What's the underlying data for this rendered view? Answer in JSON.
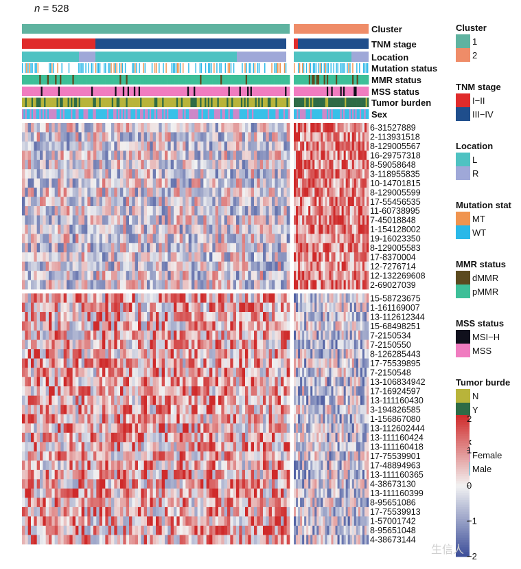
{
  "n_label": {
    "prefix": "n",
    "text": " = 528"
  },
  "watermark": "生信人",
  "chart_data": {
    "type": "heatmap",
    "title": "",
    "n_samples": 528,
    "cluster_sizes": [
      375,
      153
    ],
    "annotation_tracks": [
      {
        "name": "Cluster"
      },
      {
        "name": "TNM stage"
      },
      {
        "name": "Location"
      },
      {
        "name": "Mutation status"
      },
      {
        "name": "MMR status"
      },
      {
        "name": "MSS status"
      },
      {
        "name": "Tumor burden"
      },
      {
        "name": "Sex"
      }
    ],
    "legends": [
      {
        "title": "Cluster",
        "items": [
          {
            "label": "1",
            "color": "#5fb3a0"
          },
          {
            "label": "2",
            "color": "#ef8c68"
          }
        ]
      },
      {
        "title": "TNM stage",
        "items": [
          {
            "label": "I−II",
            "color": "#e02b2b"
          },
          {
            "label": "III−IV",
            "color": "#1f4e8c"
          }
        ]
      },
      {
        "title": "Location",
        "items": [
          {
            "label": "L",
            "color": "#4fc2c2"
          },
          {
            "label": "R",
            "color": "#9fa8d8"
          }
        ]
      },
      {
        "title": "Mutation stat",
        "items": [
          {
            "label": "MT",
            "color": "#f0944f"
          },
          {
            "label": "WT",
            "color": "#2ab8e8"
          }
        ]
      },
      {
        "title": "MMR status",
        "items": [
          {
            "label": "dMMR",
            "color": "#5b4a1e"
          },
          {
            "label": "pMMR",
            "color": "#3dbf98"
          }
        ]
      },
      {
        "title": "MSS status",
        "items": [
          {
            "label": "MSI−H",
            "color": "#10101c"
          },
          {
            "label": "MSS",
            "color": "#f07cc0"
          }
        ]
      },
      {
        "title": "Tumor burde",
        "items": [
          {
            "label": "N",
            "color": "#b8b43a"
          },
          {
            "label": "Y",
            "color": "#2e6b46"
          }
        ]
      },
      {
        "title": "Sex",
        "items": [
          {
            "label": "Female",
            "color": "#cc88c8"
          },
          {
            "label": "Male",
            "color": "#38c0e8"
          }
        ]
      }
    ],
    "row_blocks": [
      {
        "rows": [
          "6-31527889",
          "2-113931518",
          "8-129005567",
          "16-29757318",
          "8-59058648",
          "3-118955835",
          "10-14701815",
          "8-129005599",
          "17-55456535",
          "11-60738995",
          "7-45018848",
          "1-154128002",
          "19-16023350",
          "8-129005583",
          "17-8370004",
          "12-7276714",
          "12-132269608",
          "2-69027039"
        ]
      },
      {
        "rows": [
          "15-58723675",
          "1-161169007",
          "13-112612344",
          "15-68498251",
          "7-2150534",
          "7-2150550",
          "8-126285443",
          "17-75539895",
          "7-2150548",
          "13-106834942",
          "17-16924597",
          "13-111160430",
          "3-194826585",
          "1-156867080",
          "13-112602444",
          "13-111160424",
          "13-111160418",
          "17-75539901",
          "17-48894963",
          "13-111160365",
          "4-38673130",
          "13-111160399",
          "8-95651086",
          "17-75539913",
          "1-57001742",
          "8-95651048",
          "4-38673144"
        ]
      }
    ],
    "colorbar": {
      "ticks": [
        "2",
        "1",
        "0",
        "−1",
        "−2"
      ],
      "values": [
        2,
        1,
        0,
        -1,
        -2
      ],
      "min": -2,
      "max": 2,
      "low_color": "#3b4d99",
      "mid_color": "#f2f2f2",
      "high_color": "#cf2a2a"
    }
  }
}
